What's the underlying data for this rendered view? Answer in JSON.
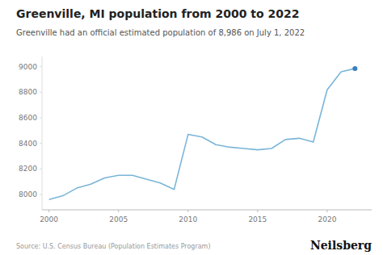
{
  "chart_data": {
    "type": "line",
    "title": "Greenville, MI population from 2000 to 2022",
    "subtitle": "Greenville had an official estimated population of 8,986 on July 1, 2022",
    "annotations": [
      "Source: U.S. Census Bureau (Population Estimates Program)",
      "Neilsberg"
    ],
    "series": [
      {
        "type": "line",
        "color": "#7ab5d8",
        "x": [
          2000,
          2001,
          2002,
          2003,
          2004,
          2005,
          2006,
          2007,
          2008,
          2009,
          2010,
          2011,
          2012,
          2013,
          2014,
          2015,
          2016,
          2017,
          2018,
          2019,
          2020,
          2021,
          2022
        ],
        "values": [
          7960,
          7990,
          8050,
          8080,
          8130,
          8150,
          8150,
          8120,
          8090,
          8040,
          8470,
          8450,
          8390,
          8370,
          8360,
          8350,
          8360,
          8430,
          8440,
          8410,
          8820,
          8960,
          8986
        ]
      },
      {
        "type": "scatter",
        "color": "#3a7fbf",
        "x": [
          2022
        ],
        "values": [
          8986
        ]
      }
    ],
    "xlim": [
      1999.5,
      2023.2
    ],
    "xticks": [
      2000,
      2005,
      2010,
      2015,
      2020
    ],
    "ylim": [
      7880,
      9080
    ],
    "yticks": [
      8000,
      8200,
      8400,
      8600,
      8800,
      9000
    ],
    "grid": false
  }
}
